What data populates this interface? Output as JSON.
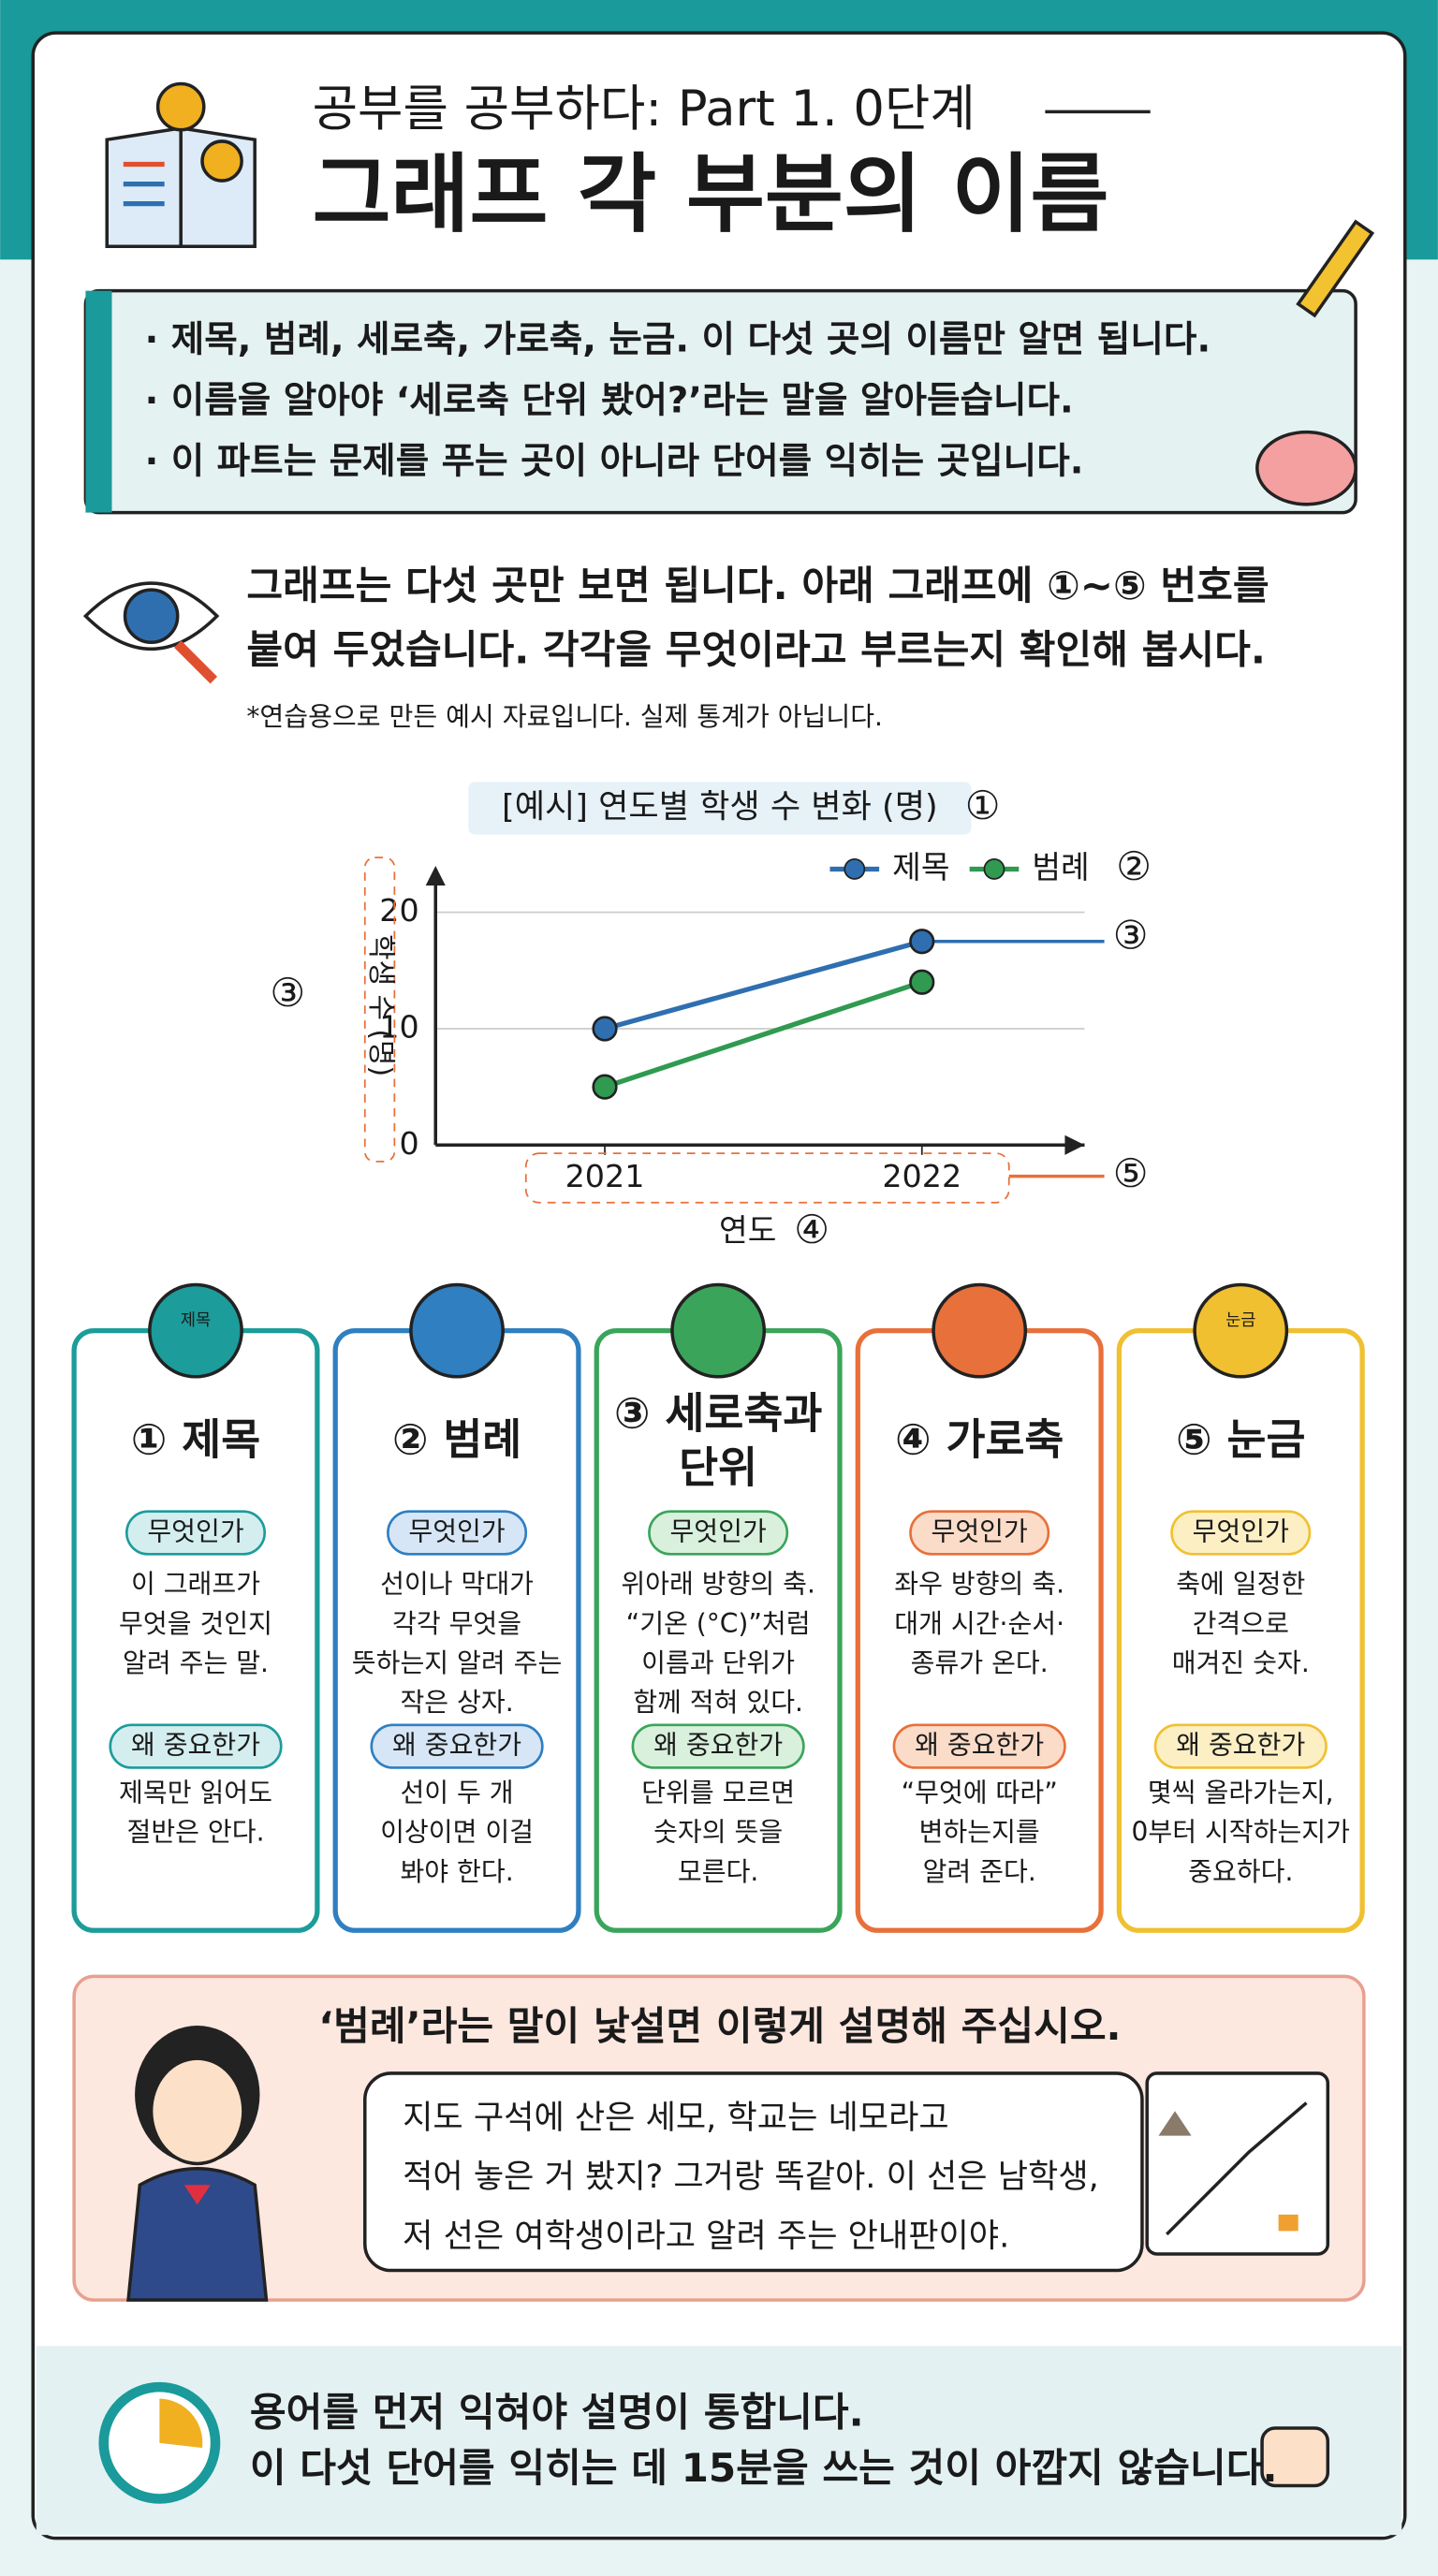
{
  "header": {
    "subtitle": "공부를 공부하다: Part 1. 0단계",
    "title": "그래프 각 부분의 이름"
  },
  "summary": [
    "· 제목, 범례, 세로축, 가로축, 눈금. 이 다섯 곳의 이름만 알면 됩니다.",
    "· 이름을 알아야 ‘세로축 단위 봤어?’라는 말을 알아듣습니다.",
    "· 이 파트는 문제를 푸는 곳이 아니라 단어를 익히는 곳입니다."
  ],
  "intro": {
    "lines": [
      "그래프는 다섯 곳만 보면 됩니다. 아래 그래프에 ①~⑤ 번호를",
      "붙여 두었습니다. 각각을 무엇이라고 부르는지 확인해 봅시다."
    ],
    "note": "*연습용으로 만든 예시 자료입니다. 실제 통계가 아닙니다."
  },
  "chart_data": {
    "type": "line",
    "title": "[예시] 연도별 학생 수 변화 (명)",
    "categories": [
      "2021",
      "2022"
    ],
    "series": [
      {
        "name": "제목",
        "color": "#2f6fb0",
        "values": [
          10,
          17.5
        ]
      },
      {
        "name": "범례",
        "color": "#2f9a50",
        "values": [
          5,
          14
        ]
      }
    ],
    "ylim": [
      0,
      24
    ],
    "yticks": [
      0,
      10,
      20
    ],
    "grid": true,
    "legend": "top-right",
    "ylabel": "학생 수 (명)",
    "xlabel": "연도",
    "title_callout": "①",
    "legend_callout": "②",
    "yaxis_callouts": [
      "③",
      "③"
    ],
    "xlabel_callout": "④",
    "xticks_callout": "⑤"
  },
  "cards": [
    {
      "icon_text": "제목",
      "title": [
        "① 제목"
      ],
      "what_label": "무엇인가",
      "what": [
        "이 그래프가",
        "무엇을 것인지",
        "알려 주는 말."
      ],
      "why_label": "왜 중요한가",
      "why": [
        "제목만 읽어도",
        "절반은 안다."
      ]
    },
    {
      "title": [
        "② 범례"
      ],
      "what_label": "무엇인가",
      "what": [
        "선이나 막대가",
        "각각 무엇을",
        "뜻하는지 알려 주는",
        "작은 상자."
      ],
      "why_label": "왜 중요한가",
      "why": [
        "선이 두 개",
        "이상이면 이걸",
        "봐야 한다."
      ]
    },
    {
      "title": [
        "③ 세로축과",
        "단위"
      ],
      "what_label": "무엇인가",
      "what": [
        "위아래 방향의 축.",
        "“기온 (°C)”처럼",
        "이름과 단위가",
        "함께 적혀 있다."
      ],
      "why_label": "왜 중요한가",
      "why": [
        "단위를 모르면",
        "숫자의 뜻을",
        "모른다."
      ]
    },
    {
      "title": [
        "④ 가로축"
      ],
      "what_label": "무엇인가",
      "what": [
        "좌우 방향의 축.",
        "대개 시간·순서·",
        "종류가 온다."
      ],
      "why_label": "왜 중요한가",
      "why": [
        "“무엇에 따라”",
        "변하는지를",
        "알려 준다."
      ]
    },
    {
      "icon_text": "눈금",
      "title": [
        "⑤ 눈금"
      ],
      "what_label": "무엇인가",
      "what": [
        "축에 일정한",
        "간격으로",
        "매겨진 숫자."
      ],
      "why_label": "왜 중요한가",
      "why": [
        "몇씩 올라가는지,",
        "0부터 시작하는지가",
        "중요하다."
      ]
    }
  ],
  "tip": {
    "title": "‘범례’라는 말이 낯설면 이렇게 설명해 주십시오.",
    "speech": [
      "지도 구석에 산은 세모, 학교는 네모라고",
      "적어 놓은 거 봤지? 그거랑 똑같아. 이 선은 남학생,",
      "저 선은 여학생이라고 알려 주는 안내판이야."
    ]
  },
  "footer": [
    "용어를 먼저 익혀야 설명이 통합니다.",
    "이 다섯 단어를 익히는 데 15분을 쓰는 것이 아깝지 않습니다."
  ]
}
